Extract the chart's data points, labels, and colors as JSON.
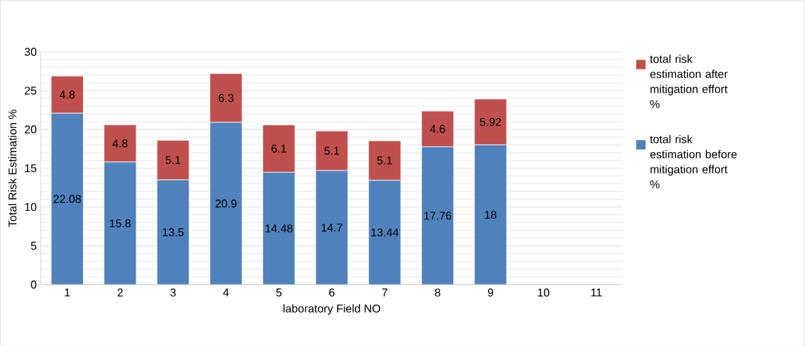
{
  "chart_data": {
    "type": "bar",
    "stacked": true,
    "xlabel": "laboratory Field  NO",
    "ylabel": "Total Risk Estimation %",
    "categories": [
      "1",
      "2",
      "3",
      "4",
      "5",
      "6",
      "7",
      "8",
      "9",
      "10",
      "11"
    ],
    "series": [
      {
        "name": "total risk estimation before mitigation effort %",
        "color": "#4f81bd",
        "values": [
          22.08,
          15.8,
          13.5,
          20.9,
          14.48,
          14.7,
          13.44,
          17.76,
          18,
          null,
          null
        ]
      },
      {
        "name": "total risk estimation after mitigation effort %",
        "color": "#c0504d",
        "values": [
          4.8,
          4.8,
          5.1,
          6.3,
          6.1,
          5.1,
          5.1,
          4.6,
          5.92,
          null,
          null
        ]
      }
    ],
    "ylim": [
      0,
      30
    ],
    "yticks": [
      0,
      5,
      10,
      15,
      20,
      25,
      30
    ],
    "grid": "y",
    "legend": "right",
    "data_labels": true
  }
}
